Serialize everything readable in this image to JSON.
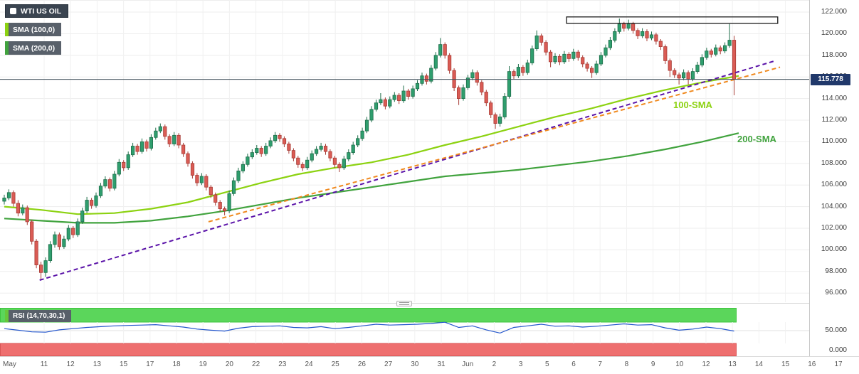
{
  "legend": {
    "instrument": "WTI US OIL",
    "sma100": "SMA (100,0)",
    "sma200": "SMA (200,0)"
  },
  "annotations": {
    "sma100": "100-SMA",
    "sma200": "200-SMA"
  },
  "price_tag": "115.778",
  "price_axis": [
    "122.000",
    "120.000",
    "118.000",
    "116.000",
    "114.000",
    "112.000",
    "110.000",
    "108.000",
    "106.000",
    "104.000",
    "102.000",
    "100.000",
    "98.000",
    "96.000"
  ],
  "time_axis": [
    "May",
    "11",
    "12",
    "13",
    "15",
    "17",
    "18",
    "19",
    "20",
    "22",
    "23",
    "24",
    "25",
    "26",
    "27",
    "30",
    "31",
    "Jun",
    "2",
    "3",
    "5",
    "6",
    "7",
    "8",
    "9",
    "10",
    "12",
    "13",
    "14",
    "15",
    "16",
    "17"
  ],
  "rsi": {
    "legend": "RSI (14,70,30,1)",
    "axis": [
      "50.000",
      "0.000"
    ],
    "overbought": 70,
    "oversold": 30,
    "step": 3,
    "values": [
      55,
      51,
      47,
      46,
      52,
      55,
      58,
      60,
      62,
      63,
      64,
      65,
      62,
      59,
      54,
      51,
      49,
      56,
      60,
      61,
      62,
      58,
      57,
      60,
      55,
      58,
      62,
      66,
      64,
      65,
      66,
      68,
      71,
      58,
      62,
      52,
      44,
      58,
      62,
      66,
      61,
      62,
      59,
      61,
      64,
      67,
      64,
      65,
      57,
      51,
      54,
      59,
      55,
      49
    ]
  },
  "colors": {
    "candle_up": "#2f9e6e",
    "candle_up_border": "#1e6e4a",
    "candle_down": "#da5c55",
    "candle_down_border": "#a83c36",
    "sma100": "#8cd211",
    "sma200": "#41a33e",
    "purple": "#5a12a8",
    "orange": "#f0891e",
    "rsi_line": "#2255cc",
    "rsi_swatch": "#67c73a",
    "rsi_overbought": "#5bd65b",
    "rsi_overbought_border": "#3ec43e",
    "rsi_oversold": "#ee6f6f",
    "rsi_oversold_border": "#d95555",
    "last_price_line": "#3e4e59",
    "price_tag_bg": "#20386a",
    "resistance_box_border": "#1b1b1b"
  },
  "chart_data": {
    "type": "candlestick",
    "title": "WTI US OIL",
    "ylim": [
      95.6,
      122.8
    ],
    "last_price": 115.778,
    "candles": [
      [
        104.5,
        105.1,
        104.2,
        104.8
      ],
      [
        104.8,
        105.6,
        104.6,
        105.3
      ],
      [
        105.3,
        105.5,
        104.0,
        104.3
      ],
      [
        104.3,
        104.6,
        103.1,
        103.4
      ],
      [
        103.4,
        104.2,
        103.2,
        103.9
      ],
      [
        103.9,
        104.1,
        102.3,
        102.6
      ],
      [
        102.6,
        102.8,
        100.5,
        100.8
      ],
      [
        100.8,
        101.0,
        98.3,
        98.6
      ],
      [
        98.6,
        98.9,
        97.2,
        97.9
      ],
      [
        97.9,
        99.3,
        97.5,
        99.0
      ],
      [
        99.0,
        100.8,
        98.8,
        100.5
      ],
      [
        100.5,
        101.7,
        100.2,
        101.4
      ],
      [
        101.4,
        101.6,
        100.0,
        100.3
      ],
      [
        100.3,
        101.3,
        100.1,
        101.0
      ],
      [
        101.0,
        102.3,
        100.8,
        102.0
      ],
      [
        102.0,
        102.2,
        101.1,
        101.4
      ],
      [
        101.4,
        102.9,
        101.2,
        102.6
      ],
      [
        102.6,
        103.9,
        102.4,
        103.6
      ],
      [
        103.6,
        104.9,
        103.4,
        104.6
      ],
      [
        104.6,
        104.8,
        103.8,
        104.1
      ],
      [
        104.1,
        105.3,
        103.9,
        105.0
      ],
      [
        105.0,
        106.2,
        104.8,
        105.9
      ],
      [
        105.9,
        106.8,
        105.7,
        106.5
      ],
      [
        106.5,
        106.7,
        105.4,
        105.7
      ],
      [
        105.7,
        107.3,
        105.5,
        107.0
      ],
      [
        107.0,
        108.4,
        106.8,
        108.1
      ],
      [
        108.1,
        108.3,
        107.3,
        107.6
      ],
      [
        107.6,
        109.1,
        107.4,
        108.8
      ],
      [
        108.8,
        109.9,
        108.6,
        109.6
      ],
      [
        109.6,
        109.8,
        108.8,
        109.1
      ],
      [
        109.1,
        110.3,
        108.9,
        110.0
      ],
      [
        110.0,
        110.2,
        109.1,
        109.4
      ],
      [
        109.4,
        110.7,
        109.2,
        110.4
      ],
      [
        110.4,
        111.3,
        110.2,
        111.0
      ],
      [
        111.0,
        111.7,
        110.8,
        111.4
      ],
      [
        111.4,
        111.6,
        110.2,
        110.5
      ],
      [
        110.5,
        110.7,
        109.5,
        109.8
      ],
      [
        109.8,
        110.9,
        109.6,
        110.6
      ],
      [
        110.6,
        110.8,
        109.4,
        109.7
      ],
      [
        109.7,
        109.9,
        108.6,
        108.9
      ],
      [
        108.9,
        109.1,
        107.7,
        108.0
      ],
      [
        108.0,
        108.2,
        106.6,
        106.9
      ],
      [
        106.9,
        107.1,
        105.9,
        106.2
      ],
      [
        106.2,
        107.1,
        106.0,
        106.8
      ],
      [
        106.8,
        107.0,
        105.5,
        105.8
      ],
      [
        105.8,
        106.0,
        104.8,
        105.1
      ],
      [
        105.1,
        105.3,
        104.1,
        104.4
      ],
      [
        104.4,
        104.6,
        103.5,
        103.8
      ],
      [
        103.8,
        104.0,
        103.2,
        103.6
      ],
      [
        103.6,
        105.5,
        103.4,
        105.2
      ],
      [
        105.2,
        106.7,
        105.0,
        106.4
      ],
      [
        106.4,
        107.6,
        106.2,
        107.3
      ],
      [
        107.3,
        108.2,
        107.1,
        107.9
      ],
      [
        107.9,
        108.9,
        107.7,
        108.6
      ],
      [
        108.6,
        109.3,
        108.4,
        109.0
      ],
      [
        109.0,
        109.7,
        108.8,
        109.4
      ],
      [
        109.4,
        109.6,
        108.6,
        108.9
      ],
      [
        108.9,
        109.9,
        108.7,
        109.6
      ],
      [
        109.6,
        110.4,
        109.4,
        110.1
      ],
      [
        110.1,
        110.9,
        109.9,
        110.6
      ],
      [
        110.6,
        110.8,
        110.0,
        110.3
      ],
      [
        110.3,
        110.5,
        109.5,
        109.8
      ],
      [
        109.8,
        110.0,
        108.9,
        109.2
      ],
      [
        109.2,
        109.4,
        108.2,
        108.5
      ],
      [
        108.5,
        108.7,
        107.6,
        107.9
      ],
      [
        107.9,
        108.1,
        107.3,
        107.6
      ],
      [
        107.6,
        108.6,
        107.4,
        108.3
      ],
      [
        108.3,
        109.2,
        108.1,
        108.9
      ],
      [
        108.9,
        109.6,
        108.7,
        109.3
      ],
      [
        109.3,
        109.9,
        109.1,
        109.6
      ],
      [
        109.6,
        109.8,
        108.8,
        109.1
      ],
      [
        109.1,
        109.3,
        108.2,
        108.5
      ],
      [
        108.5,
        108.7,
        107.6,
        107.9
      ],
      [
        107.9,
        108.1,
        107.2,
        107.6
      ],
      [
        107.6,
        108.7,
        107.4,
        108.4
      ],
      [
        108.4,
        109.3,
        108.2,
        109.0
      ],
      [
        109.0,
        110.0,
        108.8,
        109.7
      ],
      [
        109.7,
        110.6,
        109.5,
        110.3
      ],
      [
        110.3,
        111.3,
        110.1,
        111.0
      ],
      [
        111.0,
        112.3,
        110.8,
        112.0
      ],
      [
        112.0,
        113.3,
        111.8,
        113.0
      ],
      [
        113.0,
        113.9,
        112.8,
        113.6
      ],
      [
        113.6,
        114.5,
        113.4,
        113.9
      ],
      [
        113.9,
        114.1,
        113.0,
        113.3
      ],
      [
        113.3,
        114.2,
        113.1,
        113.9
      ],
      [
        113.9,
        114.6,
        113.7,
        114.3
      ],
      [
        114.3,
        114.5,
        113.5,
        113.8
      ],
      [
        113.8,
        115.2,
        113.6,
        114.7
      ],
      [
        114.7,
        114.9,
        113.9,
        114.2
      ],
      [
        114.2,
        115.2,
        114.0,
        114.9
      ],
      [
        114.9,
        115.7,
        114.7,
        115.4
      ],
      [
        115.4,
        116.4,
        115.2,
        116.1
      ],
      [
        116.1,
        116.3,
        115.3,
        115.6
      ],
      [
        115.6,
        117.1,
        115.4,
        116.8
      ],
      [
        116.8,
        118.3,
        116.6,
        118.0
      ],
      [
        118.0,
        119.6,
        117.8,
        119.0
      ],
      [
        119.0,
        119.2,
        117.7,
        118.0
      ],
      [
        118.0,
        118.2,
        116.3,
        116.6
      ],
      [
        116.6,
        116.8,
        114.7,
        115.0
      ],
      [
        115.0,
        115.2,
        113.4,
        114.0
      ],
      [
        114.0,
        115.3,
        113.8,
        115.0
      ],
      [
        115.0,
        116.2,
        114.8,
        115.9
      ],
      [
        115.9,
        116.7,
        115.7,
        116.4
      ],
      [
        116.4,
        116.6,
        115.2,
        115.5
      ],
      [
        115.5,
        115.7,
        114.3,
        114.6
      ],
      [
        114.6,
        114.8,
        113.3,
        113.6
      ],
      [
        113.6,
        113.8,
        112.2,
        112.5
      ],
      [
        112.5,
        112.7,
        111.2,
        111.7
      ],
      [
        111.7,
        112.6,
        111.4,
        112.3
      ],
      [
        112.3,
        114.5,
        112.1,
        114.2
      ],
      [
        114.2,
        117.0,
        114.0,
        116.5
      ],
      [
        116.5,
        116.7,
        115.8,
        116.1
      ],
      [
        116.1,
        117.2,
        115.9,
        116.9
      ],
      [
        116.9,
        117.1,
        116.1,
        116.4
      ],
      [
        116.4,
        117.6,
        116.2,
        117.3
      ],
      [
        117.3,
        118.9,
        117.1,
        118.6
      ],
      [
        118.6,
        120.3,
        118.4,
        119.8
      ],
      [
        119.8,
        120.0,
        118.9,
        119.2
      ],
      [
        119.2,
        119.4,
        118.0,
        118.3
      ],
      [
        118.3,
        118.5,
        116.9,
        117.4
      ],
      [
        117.4,
        118.2,
        117.2,
        117.9
      ],
      [
        117.9,
        118.1,
        117.1,
        117.4
      ],
      [
        117.4,
        118.4,
        117.2,
        118.1
      ],
      [
        118.1,
        118.3,
        117.4,
        117.7
      ],
      [
        117.7,
        118.6,
        117.5,
        118.3
      ],
      [
        118.3,
        118.5,
        117.5,
        117.8
      ],
      [
        117.8,
        118.0,
        116.9,
        117.2
      ],
      [
        117.2,
        117.4,
        116.5,
        116.8
      ],
      [
        116.8,
        117.0,
        115.9,
        116.4
      ],
      [
        116.4,
        117.5,
        116.2,
        117.2
      ],
      [
        117.2,
        118.3,
        117.0,
        118.0
      ],
      [
        118.0,
        119.0,
        117.8,
        118.7
      ],
      [
        118.7,
        119.7,
        118.5,
        119.4
      ],
      [
        119.4,
        120.5,
        119.2,
        120.2
      ],
      [
        120.2,
        121.4,
        120.0,
        120.9
      ],
      [
        120.9,
        121.1,
        120.2,
        120.5
      ],
      [
        120.5,
        121.3,
        120.3,
        120.9
      ],
      [
        120.9,
        121.1,
        120.0,
        120.3
      ],
      [
        120.3,
        120.5,
        119.5,
        119.8
      ],
      [
        119.8,
        120.5,
        119.6,
        120.2
      ],
      [
        120.2,
        120.4,
        119.3,
        119.6
      ],
      [
        119.6,
        120.2,
        119.4,
        119.9
      ],
      [
        119.9,
        120.1,
        119.0,
        119.3
      ],
      [
        119.3,
        119.5,
        118.5,
        118.8
      ],
      [
        118.8,
        119.0,
        117.2,
        117.5
      ],
      [
        117.5,
        117.7,
        116.0,
        116.6
      ],
      [
        116.6,
        116.8,
        115.9,
        116.2
      ],
      [
        116.2,
        116.4,
        115.3,
        115.9
      ],
      [
        115.9,
        116.7,
        115.7,
        116.4
      ],
      [
        116.4,
        116.6,
        115.3,
        115.8
      ],
      [
        115.8,
        116.8,
        115.6,
        116.5
      ],
      [
        116.5,
        117.4,
        116.3,
        117.1
      ],
      [
        117.1,
        118.1,
        116.9,
        117.8
      ],
      [
        117.8,
        118.7,
        117.6,
        118.4
      ],
      [
        118.4,
        118.6,
        117.8,
        118.1
      ],
      [
        118.1,
        119.0,
        117.9,
        118.7
      ],
      [
        118.7,
        118.9,
        118.1,
        118.4
      ],
      [
        118.4,
        119.2,
        118.2,
        118.9
      ],
      [
        118.9,
        120.9,
        118.7,
        119.4
      ],
      [
        119.4,
        119.8,
        114.3,
        115.78
      ]
    ],
    "sma100_points": [
      [
        0,
        104.0
      ],
      [
        8,
        103.7
      ],
      [
        16,
        103.3
      ],
      [
        24,
        103.4
      ],
      [
        32,
        103.8
      ],
      [
        40,
        104.4
      ],
      [
        48,
        105.3
      ],
      [
        56,
        106.2
      ],
      [
        64,
        107.0
      ],
      [
        72,
        107.6
      ],
      [
        80,
        108.1
      ],
      [
        88,
        108.8
      ],
      [
        96,
        109.7
      ],
      [
        104,
        110.5
      ],
      [
        112,
        111.4
      ],
      [
        120,
        112.3
      ],
      [
        128,
        113.1
      ],
      [
        136,
        114.0
      ],
      [
        144,
        114.8
      ],
      [
        152,
        115.5
      ],
      [
        160,
        116.1
      ]
    ],
    "sma200_points": [
      [
        0,
        102.9
      ],
      [
        8,
        102.7
      ],
      [
        16,
        102.5
      ],
      [
        24,
        102.5
      ],
      [
        32,
        102.7
      ],
      [
        40,
        103.1
      ],
      [
        48,
        103.6
      ],
      [
        56,
        104.2
      ],
      [
        64,
        104.8
      ],
      [
        72,
        105.3
      ],
      [
        80,
        105.8
      ],
      [
        88,
        106.3
      ],
      [
        96,
        106.8
      ],
      [
        104,
        107.1
      ],
      [
        112,
        107.4
      ],
      [
        120,
        107.8
      ],
      [
        128,
        108.2
      ],
      [
        136,
        108.7
      ],
      [
        144,
        109.3
      ],
      [
        152,
        110.0
      ],
      [
        160,
        110.8
      ]
    ],
    "trendlines": [
      {
        "name": "ascending-trendline",
        "color": "purple",
        "from": [
          7.7,
          97.2
        ],
        "to": [
          168,
          117.5
        ]
      },
      {
        "name": "secondary-trendline",
        "color": "orange",
        "from": [
          44.5,
          102.6
        ],
        "to": [
          169,
          116.9
        ]
      }
    ],
    "resistance_box": {
      "from_i": 122.5,
      "to_i": 168.5,
      "top": 121.55,
      "bottom": 120.95
    }
  }
}
